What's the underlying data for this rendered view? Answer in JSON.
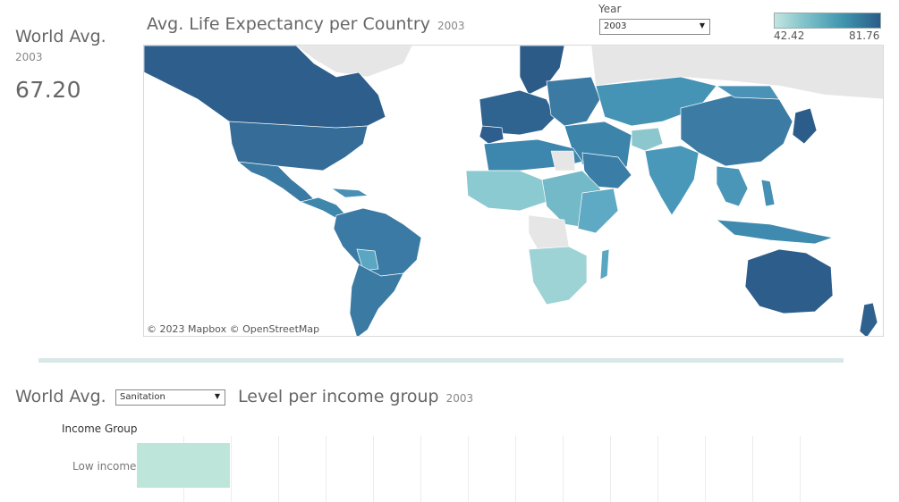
{
  "kpi": {
    "title": "World Avg.",
    "year": "2003",
    "value": "67.20"
  },
  "map": {
    "title": "Avg. Life Expectancy per Country",
    "year": "2003",
    "attribution": "© 2023 Mapbox  © OpenStreetMap",
    "colors": {
      "low": "#c2e5e0",
      "mid": "#3f94ae",
      "high": "#2a5c88",
      "no_data": "#e6e6e6"
    }
  },
  "year_filter": {
    "label": "Year",
    "selected": "2003"
  },
  "legend": {
    "min": "42.42",
    "max": "81.76"
  },
  "bottom": {
    "title_prefix": "World Avg.",
    "metric_selected": "Sanitation",
    "title_suffix": "Level per income group",
    "year": "2003",
    "column_header": "Income Group",
    "rows": [
      {
        "label": "Low income",
        "color": "#bde5d9"
      }
    ]
  }
}
